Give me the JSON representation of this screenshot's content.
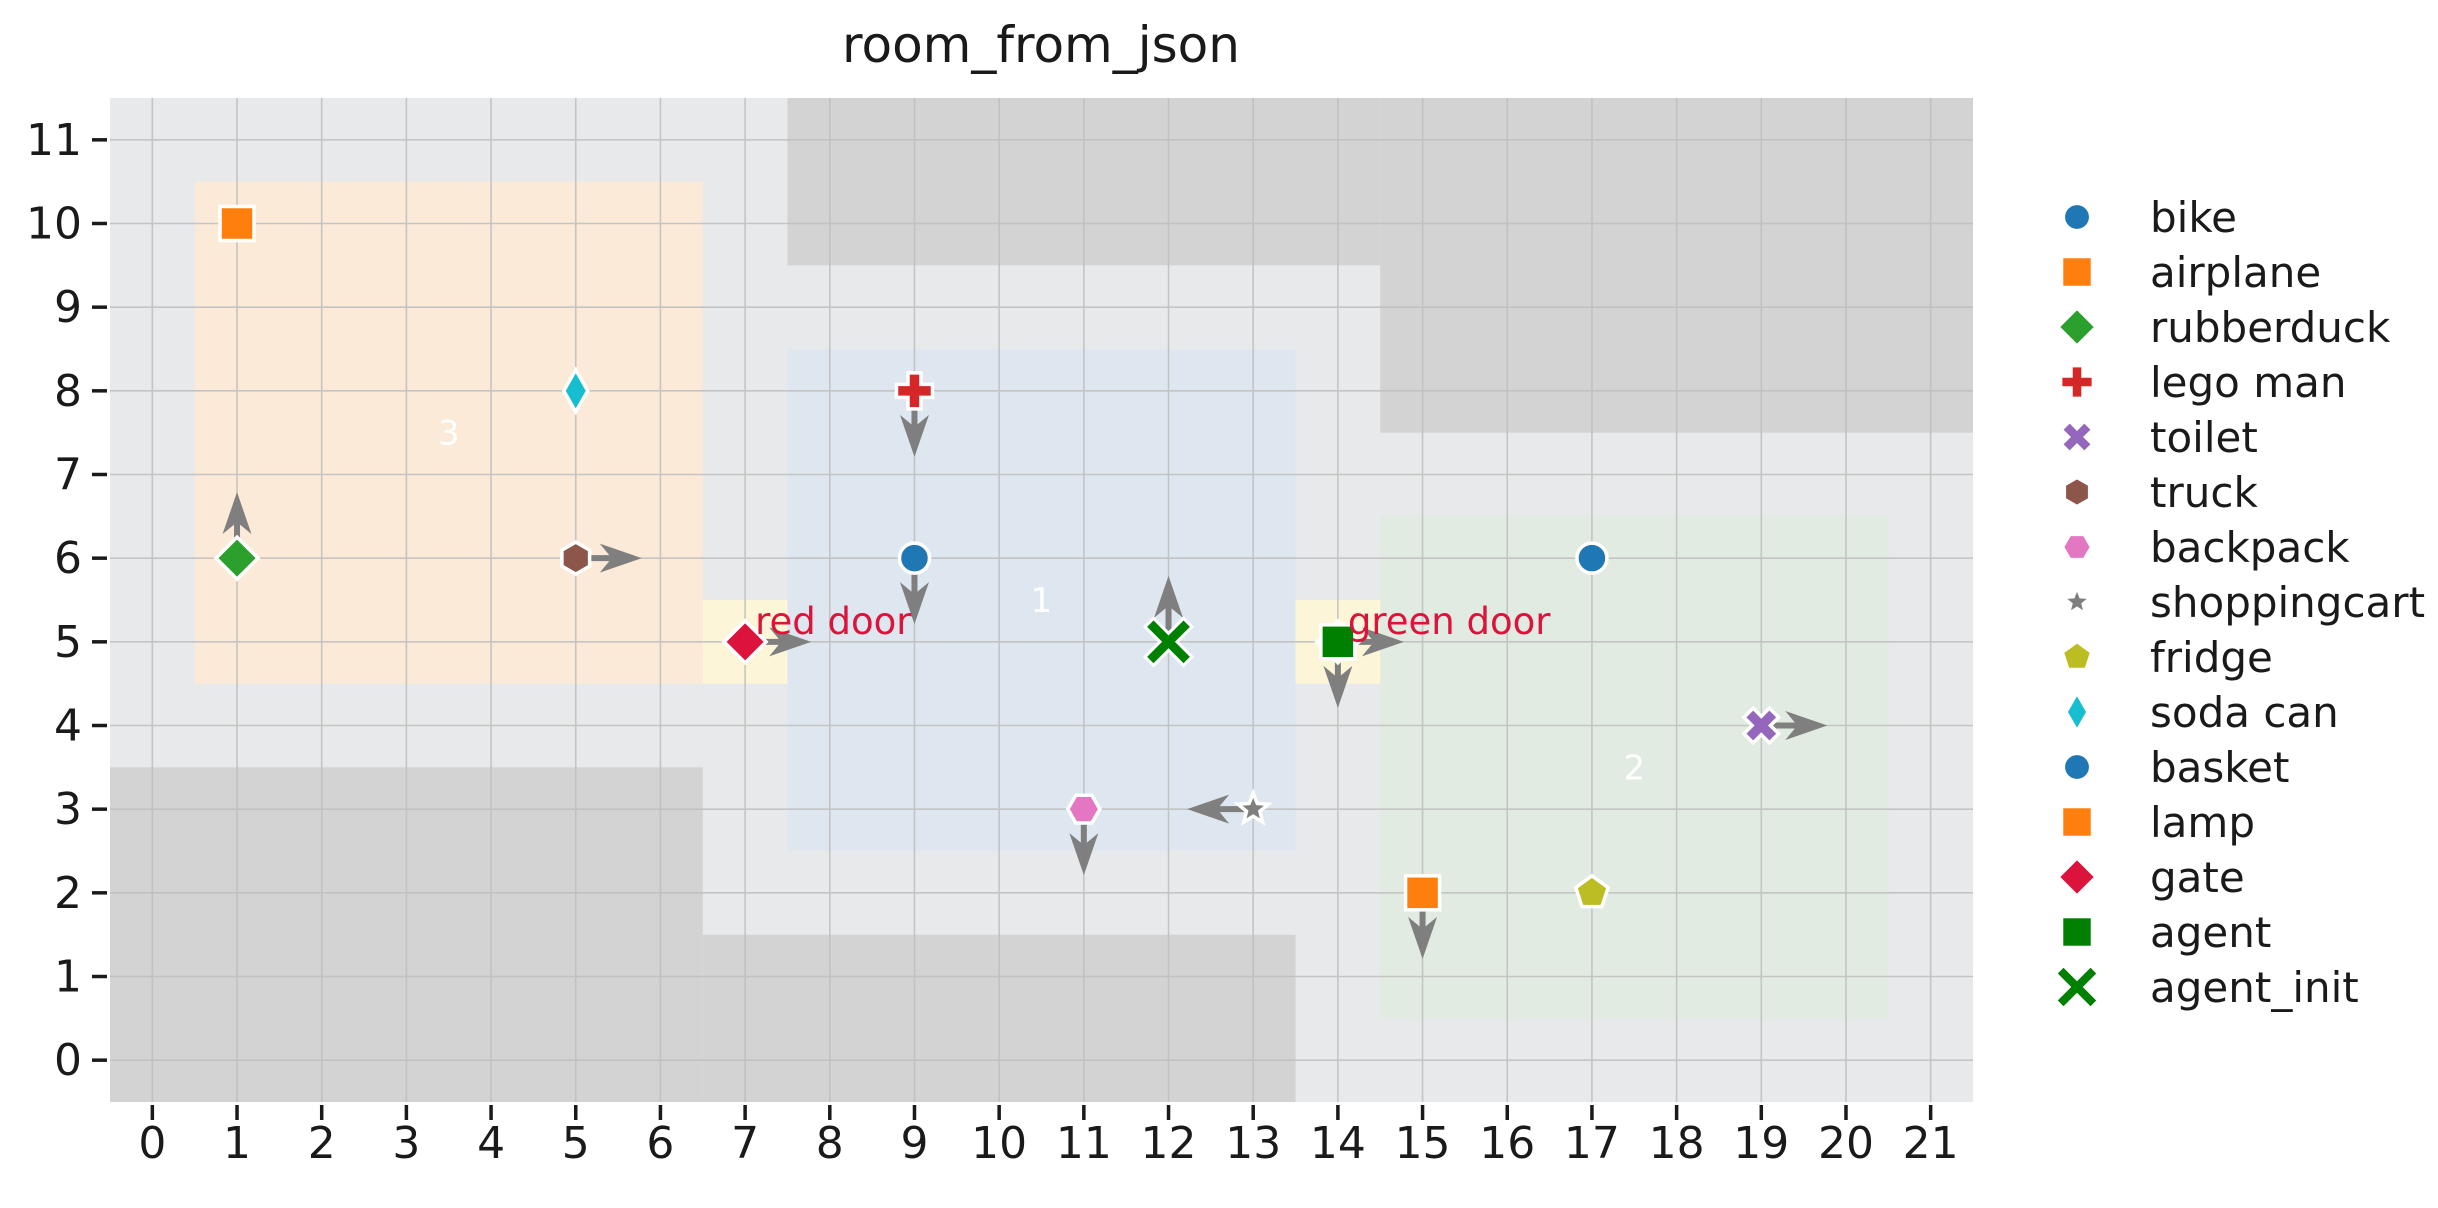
{
  "title": "room_from_json",
  "chart_data": {
    "type": "scatter",
    "title": "room_from_json",
    "xlim": [
      -0.5,
      21.5
    ],
    "ylim": [
      -0.5,
      11.5
    ],
    "xticks": [
      0,
      1,
      2,
      3,
      4,
      5,
      6,
      7,
      8,
      9,
      10,
      11,
      12,
      13,
      14,
      15,
      16,
      17,
      18,
      19,
      20,
      21
    ],
    "yticks": [
      0,
      1,
      2,
      3,
      4,
      5,
      6,
      7,
      8,
      9,
      10,
      11
    ],
    "grid": true,
    "legend_position": "right-outside",
    "colors": {
      "figure_bg": "#ffffff",
      "plot_bg": "#e8e9ea",
      "wall": "#d3d3d4",
      "door": "#fcf5d8",
      "grid": "#c0c0c0",
      "arrow": "#7f7f7f",
      "room_label": "#ffffff",
      "door_label": "#dc143c",
      "text": "#1a1a1a",
      "marker_edge": "#ffffff"
    },
    "walls": [
      {
        "name": "wall-top-middle",
        "x0": 7.5,
        "y0": 9.5,
        "x1": 14.5,
        "y1": 11.5
      },
      {
        "name": "wall-top-right",
        "x0": 14.5,
        "y0": 7.5,
        "x1": 21.5,
        "y1": 11.5
      },
      {
        "name": "wall-bottom-left",
        "x0": -0.5,
        "y0": -0.5,
        "x1": 6.5,
        "y1": 3.5
      },
      {
        "name": "wall-bottom-middle",
        "x0": 6.5,
        "y0": -0.5,
        "x1": 13.5,
        "y1": 1.5
      }
    ],
    "rooms": [
      {
        "label": "3",
        "x0": 0.5,
        "y0": 4.5,
        "x1": 6.5,
        "y1": 10.5,
        "color": "#fbead7"
      },
      {
        "label": "1",
        "x0": 7.5,
        "y0": 2.5,
        "x1": 13.5,
        "y1": 8.5,
        "color": "#dee7ef"
      },
      {
        "label": "2",
        "x0": 14.5,
        "y0": 0.5,
        "x1": 20.5,
        "y1": 6.5,
        "color": "#e1ebe1"
      }
    ],
    "doors": [
      {
        "label": "red door",
        "x": 7,
        "y": 5
      },
      {
        "label": "green door",
        "x": 14,
        "y": 5
      }
    ],
    "objects": [
      {
        "name": "bike",
        "marker": "circle",
        "color": "#1f77b4",
        "x": 9,
        "y": 6,
        "direction": "down"
      },
      {
        "name": "airplane",
        "marker": "square",
        "color": "#ff7f0e",
        "x": 1,
        "y": 10,
        "direction": null
      },
      {
        "name": "rubberduck",
        "marker": "diamond",
        "color": "#2ca02c",
        "x": 1,
        "y": 6,
        "direction": "up"
      },
      {
        "name": "lego man",
        "marker": "plus",
        "color": "#d62728",
        "x": 9,
        "y": 8,
        "direction": "down"
      },
      {
        "name": "toilet",
        "marker": "x-filled",
        "color": "#9467bd",
        "x": 19,
        "y": 4,
        "direction": "right"
      },
      {
        "name": "truck",
        "marker": "hexagon-pointy",
        "color": "#8c564b",
        "x": 5,
        "y": 6,
        "direction": "right"
      },
      {
        "name": "backpack",
        "marker": "hexagon-flat",
        "color": "#e377c2",
        "x": 11,
        "y": 3,
        "direction": "down"
      },
      {
        "name": "shoppingcart",
        "marker": "star",
        "color": "#7f7f7f",
        "x": 13,
        "y": 3,
        "direction": "left"
      },
      {
        "name": "fridge",
        "marker": "pentagon",
        "color": "#bcbd22",
        "x": 17,
        "y": 2,
        "direction": null
      },
      {
        "name": "soda can",
        "marker": "thin-diamond",
        "color": "#17becf",
        "x": 5,
        "y": 8,
        "direction": null
      },
      {
        "name": "basket",
        "marker": "circle",
        "color": "#1f77b4",
        "x": 17,
        "y": 6,
        "direction": null
      },
      {
        "name": "lamp",
        "marker": "square",
        "color": "#ff7f0e",
        "x": 15,
        "y": 2,
        "direction": "down"
      },
      {
        "name": "gate",
        "marker": "diamond",
        "color": "#dc143c",
        "x": 7,
        "y": 5,
        "direction": "right"
      },
      {
        "name": "gate",
        "marker": "diamond",
        "color": "#dc143c",
        "x": 14,
        "y": 5,
        "direction": "right"
      },
      {
        "name": "agent",
        "marker": "square",
        "color": "#008000",
        "x": 14,
        "y": 5,
        "direction": "down"
      },
      {
        "name": "agent_init",
        "marker": "x-stroke",
        "color": "#008000",
        "x": 12,
        "y": 5,
        "direction": "up"
      }
    ],
    "legend": [
      {
        "label": "bike",
        "marker": "circle",
        "color": "#1f77b4"
      },
      {
        "label": "airplane",
        "marker": "square",
        "color": "#ff7f0e"
      },
      {
        "label": "rubberduck",
        "marker": "diamond",
        "color": "#2ca02c"
      },
      {
        "label": "lego man",
        "marker": "plus",
        "color": "#d62728"
      },
      {
        "label": "toilet",
        "marker": "x-filled",
        "color": "#9467bd"
      },
      {
        "label": "truck",
        "marker": "hexagon-pointy",
        "color": "#8c564b"
      },
      {
        "label": "backpack",
        "marker": "hexagon-flat",
        "color": "#e377c2"
      },
      {
        "label": "shoppingcart",
        "marker": "star",
        "color": "#7f7f7f"
      },
      {
        "label": "fridge",
        "marker": "pentagon",
        "color": "#bcbd22"
      },
      {
        "label": "soda can",
        "marker": "thin-diamond",
        "color": "#17becf"
      },
      {
        "label": "basket",
        "marker": "circle",
        "color": "#1f77b4"
      },
      {
        "label": "lamp",
        "marker": "square",
        "color": "#ff7f0e"
      },
      {
        "label": "gate",
        "marker": "diamond",
        "color": "#dc143c"
      },
      {
        "label": "agent",
        "marker": "square",
        "color": "#008000"
      },
      {
        "label": "agent_init",
        "marker": "x-stroke",
        "color": "#008000"
      }
    ]
  }
}
